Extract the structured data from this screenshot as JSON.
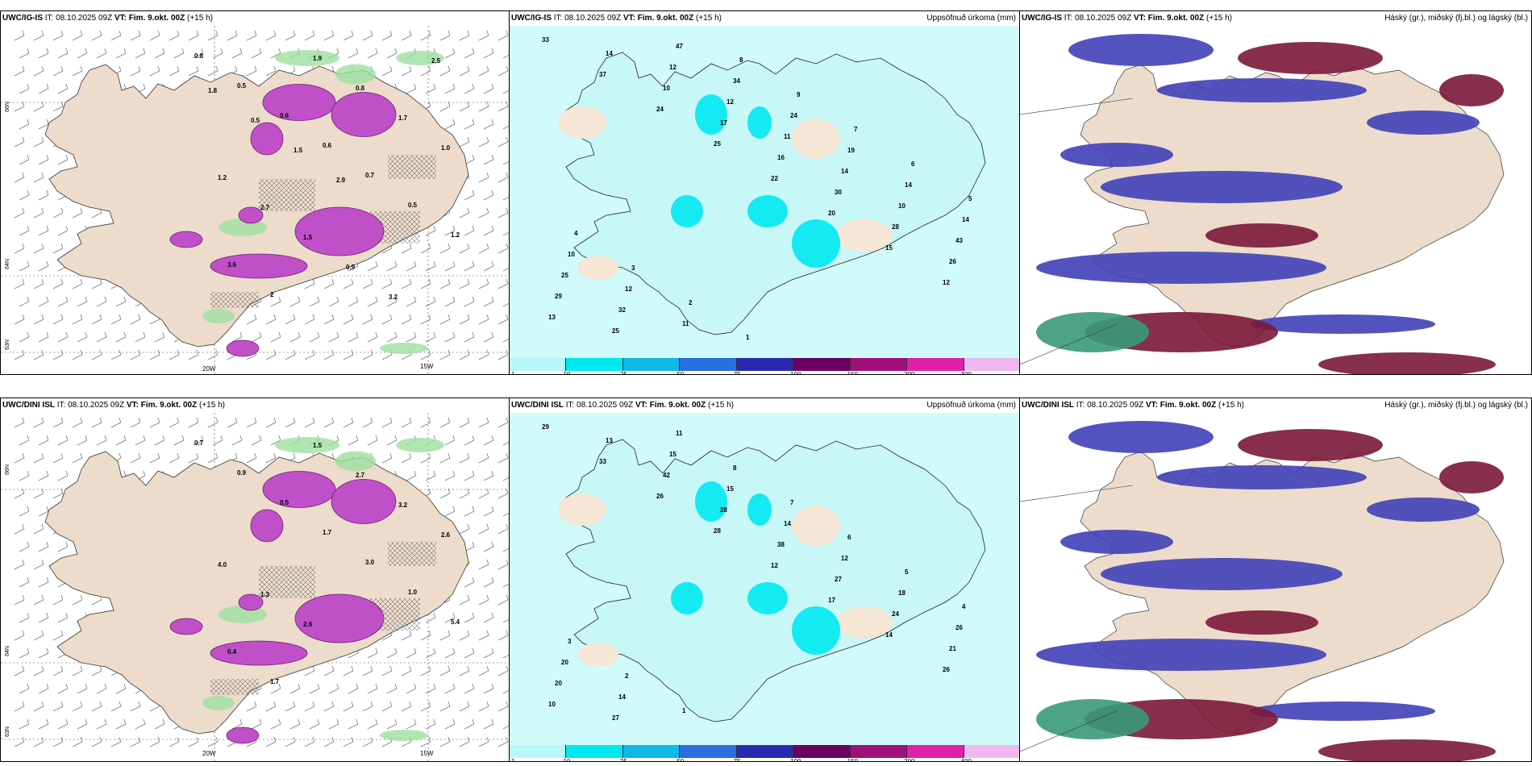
{
  "panels": [
    {
      "id": "p1",
      "model": "UWC/IG-IS",
      "it_label": "IT:",
      "it": "08.10.2025 09Z",
      "vt_label": "VT:",
      "vt": "Fim. 9.okt. 00Z",
      "lead": "(+15 h)",
      "title_right": ""
    },
    {
      "id": "p2",
      "model": "UWC/IG-IS",
      "it_label": "IT:",
      "it": "08.10.2025 09Z",
      "vt_label": "VT:",
      "vt": "Fim. 9.okt. 00Z",
      "lead": "(+15 h)",
      "title_right": "Uppsöfnuð úrkoma (mm)"
    },
    {
      "id": "p3",
      "model": "UWC/IG-IS",
      "it_label": "IT:",
      "it": "08.10.2025 09Z",
      "vt_label": "VT:",
      "vt": "Fim. 9.okt. 00Z",
      "lead": "(+15 h)",
      "title_right": "Háský (gr.), miðský (fj.bl.) og lágský (bl.)"
    },
    {
      "id": "p4",
      "model": "UWC/DINI ISL",
      "it_label": "IT:",
      "it": "08.10.2025 09Z",
      "vt_label": "VT:",
      "vt": "Fim. 9.okt. 00Z",
      "lead": "(+15 h)",
      "title_right": ""
    },
    {
      "id": "p5",
      "model": "UWC/DINI ISL",
      "it_label": "IT:",
      "it": "08.10.2025 09Z",
      "vt_label": "VT:",
      "vt": "Fim. 9.okt. 00Z",
      "lead": "(+15 h)",
      "title_right": "Uppsöfnuð úrkoma (mm)"
    },
    {
      "id": "p6",
      "model": "UWC/DINI ISL",
      "it_label": "IT:",
      "it": "08.10.2025 09Z",
      "vt_label": "VT:",
      "vt": "Fim. 9.okt. 00Z",
      "lead": "(+15 h)",
      "title_right": "Háský (gr.), miðský (fj.bl.) og lágský (bl.)"
    }
  ],
  "axis": {
    "lon_left": "20W",
    "lon_right": "15W",
    "lat_top": "66N",
    "lat_mid": "64N",
    "lat_bot": "63N"
  },
  "colorbar": {
    "ticks": [
      "1",
      "10",
      "25",
      "50",
      "75",
      "100",
      "150",
      "200",
      "400"
    ],
    "colors": [
      "#b8f7f8",
      "#00e8f0",
      "#10b8e8",
      "#2a6ee0",
      "#2a2ab0",
      "#6a0060",
      "#a0107a",
      "#e020a8",
      "#f0b8f0"
    ]
  },
  "precip_labels_top": [
    "33",
    "37",
    "24",
    "25",
    "22",
    "20",
    "15",
    "12",
    "13",
    "14",
    "10",
    "17",
    "16",
    "30",
    "28",
    "26",
    "29",
    "25",
    "12",
    "12",
    "11",
    "14",
    "10",
    "43",
    "25",
    "32",
    "47",
    "34",
    "24",
    "19",
    "14",
    "14",
    "10",
    "12",
    "11",
    "8",
    "9",
    "7",
    "6",
    "5",
    "4",
    "3",
    "2",
    "1"
  ],
  "precip_labels_bot": [
    "29",
    "33",
    "26",
    "28",
    "12",
    "17",
    "14",
    "26",
    "10",
    "13",
    "42",
    "28",
    "38",
    "27",
    "24",
    "21",
    "20",
    "27",
    "15",
    "15",
    "14",
    "12",
    "18",
    "26",
    "20",
    "14",
    "11",
    "8",
    "7",
    "6",
    "5",
    "4",
    "3",
    "2",
    "1"
  ],
  "snow_labels_top": [
    "0.8",
    "0.5",
    "0.6",
    "0.6",
    "0.7",
    "0.5",
    "1.2",
    "3.6",
    "2",
    "1.9",
    "0.8",
    "1.7",
    "1.0",
    "1.2",
    "2.7",
    "1.5",
    "0.9",
    "3.2",
    "2.5",
    "1.8",
    "0.5",
    "1.5",
    "2.9"
  ],
  "snow_labels_bot": [
    "0.7",
    "0.9",
    "0.5",
    "1.7",
    "3.0",
    "1.0",
    "5.4",
    "0.4",
    "1.7",
    "1.5",
    "2.7",
    "3.2",
    "2.6",
    "4.0",
    "1.3",
    "2.9"
  ]
}
